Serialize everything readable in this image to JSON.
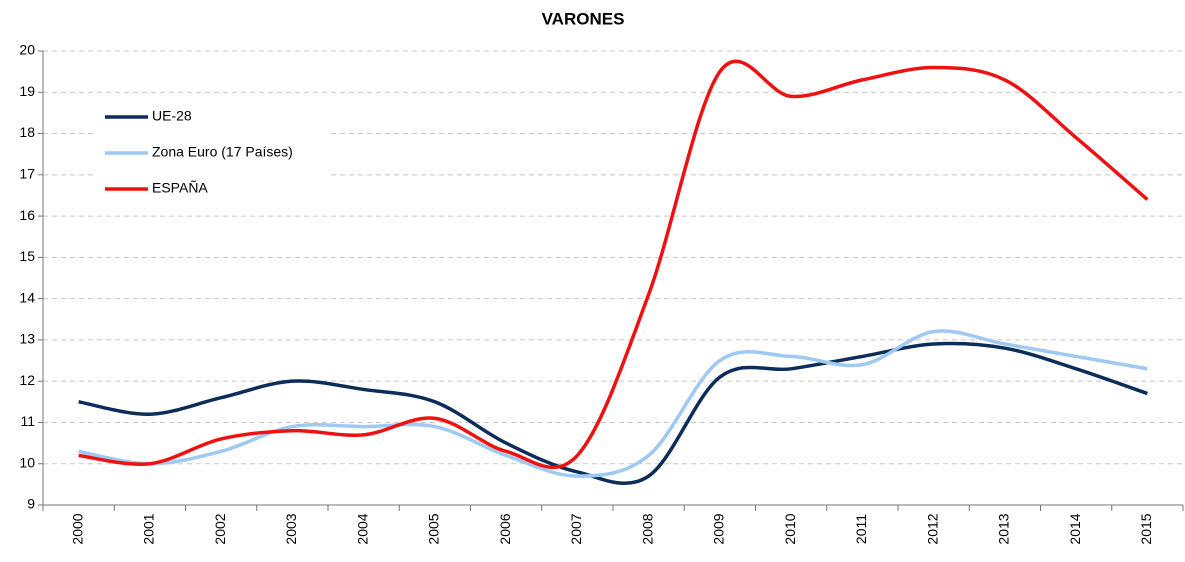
{
  "chart_data": {
    "type": "line",
    "title": "VARONES",
    "categories": [
      "2000",
      "2001",
      "2002",
      "2003",
      "2004",
      "2005",
      "2006",
      "2007",
      "2008",
      "2009",
      "2010",
      "2011",
      "2012",
      "2013",
      "2014",
      "2015"
    ],
    "series": [
      {
        "name": "UE-28",
        "color": "#0c2d5a",
        "values": [
          11.5,
          11.2,
          11.6,
          12.0,
          11.8,
          11.5,
          10.5,
          9.8,
          9.7,
          12.1,
          12.3,
          12.6,
          12.9,
          12.8,
          12.3,
          11.7
        ]
      },
      {
        "name": "Zona Euro (17 Países)",
        "color": "#9ec9f2",
        "values": [
          10.3,
          10.0,
          10.3,
          10.9,
          10.9,
          10.9,
          10.2,
          9.7,
          10.2,
          12.5,
          12.6,
          12.4,
          13.2,
          12.9,
          12.6,
          12.3
        ]
      },
      {
        "name": "ESPAÑA",
        "color": "#ee1111",
        "values": [
          10.2,
          10.0,
          10.6,
          10.8,
          10.7,
          11.1,
          10.3,
          10.2,
          14.1,
          19.5,
          18.9,
          19.3,
          19.6,
          19.3,
          17.9,
          16.4
        ]
      }
    ],
    "ylim": [
      9,
      20
    ],
    "yticks": [
      9,
      10,
      11,
      12,
      13,
      14,
      15,
      16,
      17,
      18,
      19,
      20
    ],
    "grid": true,
    "legend": "upper left"
  }
}
